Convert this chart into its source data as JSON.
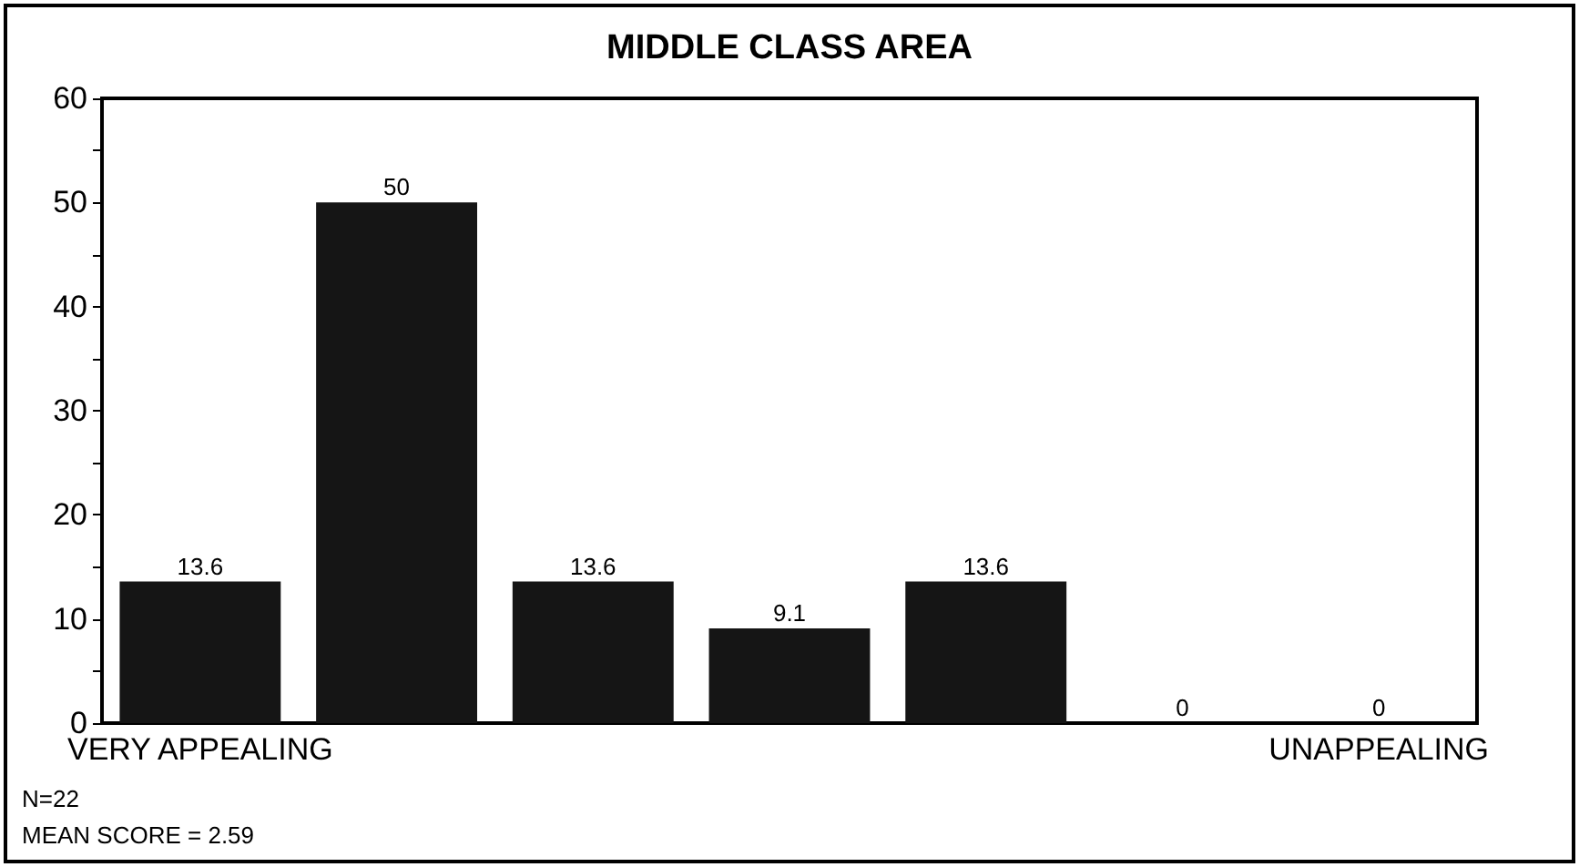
{
  "chart_data": {
    "type": "bar",
    "title": "MIDDLE CLASS AREA",
    "categories": [
      "VERY APPEALING",
      null,
      null,
      null,
      null,
      null,
      "UNAPPEALING"
    ],
    "values": [
      13.6,
      50,
      13.6,
      9.1,
      13.6,
      0,
      0
    ],
    "color": "#151515",
    "ylim": [
      0,
      60
    ],
    "yticks": [
      0,
      {
        "value": 5,
        "label": null
      },
      10,
      {
        "value": 15,
        "label": null
      },
      20,
      {
        "value": 25,
        "label": null
      },
      30,
      {
        "value": 35,
        "label": null
      },
      40,
      {
        "value": 45,
        "label": null
      },
      50,
      {
        "value": 55,
        "label": null
      },
      60
    ],
    "data_labels": true,
    "grid": false,
    "annotations": [
      "N=22",
      "MEAN SCORE = 2.59"
    ]
  }
}
